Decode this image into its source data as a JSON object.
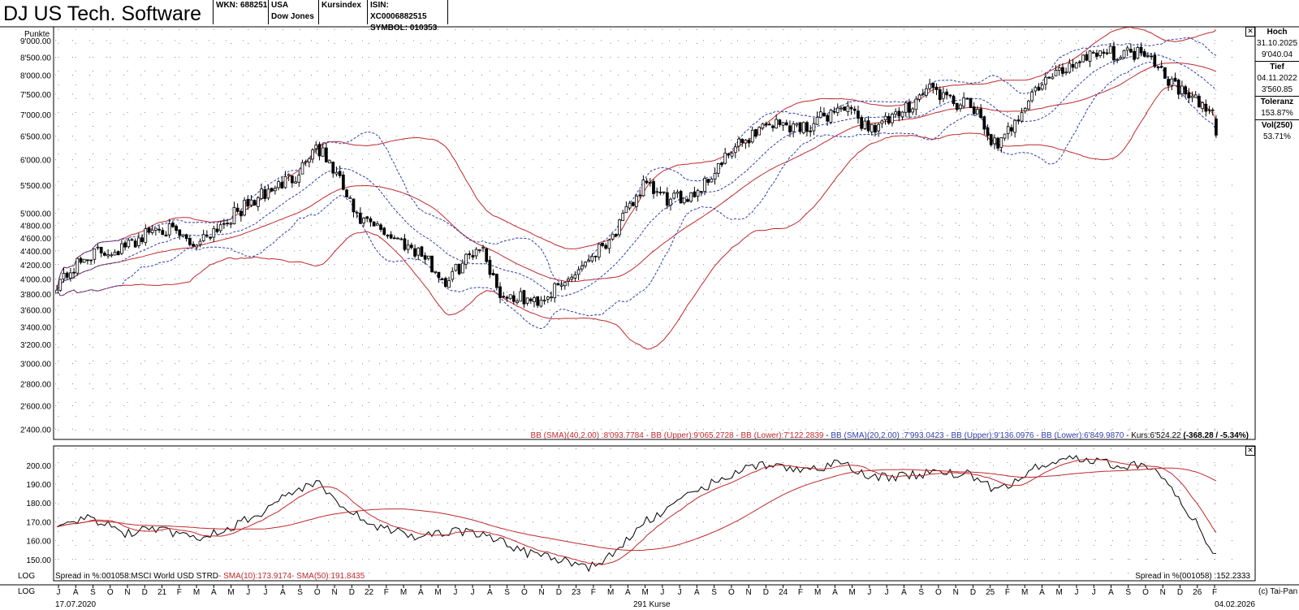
{
  "header": {
    "title": "DJ US Tech. Software",
    "cells": [
      {
        "line1": "WKN: 688251",
        "line2": ""
      },
      {
        "line1": "USA",
        "line2": "Dow Jones"
      },
      {
        "line1": "Kursindex",
        "line2": ""
      },
      {
        "line1": "ISIN: XC0006882515",
        "line2": "SYMBOL: 010353"
      }
    ]
  },
  "side_panel": {
    "hoch_label": "Hoch",
    "hoch_date": "31.10.2025",
    "hoch_value": "9'040.04",
    "tief_label": "Tief",
    "tief_date": "04.11.2022",
    "tief_value": "3'560.85",
    "toleranz_label": "Toleranz",
    "toleranz_value": "153.87%",
    "vol_label": "Vol(250)",
    "vol_value": "53.71%"
  },
  "footer": {
    "log_label_1": "LOG",
    "log_label_2": "LOG",
    "start_date": "17.07.2020",
    "count_label": "291 Kurse",
    "end_date": "04.02.2026",
    "credit": "(c) Tai-Pan"
  },
  "chart_data": [
    {
      "type": "candlestick",
      "ylabel": "Punkte",
      "scale": "log",
      "ylim": [
        2350,
        9350
      ],
      "y_ticks": [
        {
          "v": 2400,
          "label": "2'400.00"
        },
        {
          "v": 2600,
          "label": "2'600.00"
        },
        {
          "v": 2800,
          "label": "2'800.00"
        },
        {
          "v": 3000,
          "label": "3'000.00"
        },
        {
          "v": 3200,
          "label": "3'200.00"
        },
        {
          "v": 3400,
          "label": "3'400.00"
        },
        {
          "v": 3600,
          "label": "3'600.00"
        },
        {
          "v": 3800,
          "label": "3'800.00"
        },
        {
          "v": 4000,
          "label": "4'000.00"
        },
        {
          "v": 4200,
          "label": "4'200.00"
        },
        {
          "v": 4400,
          "label": "4'400.00"
        },
        {
          "v": 4600,
          "label": "4'600.00"
        },
        {
          "v": 4800,
          "label": "4'800.00"
        },
        {
          "v": 5000,
          "label": "5'000.00"
        },
        {
          "v": 5500,
          "label": "5'500.00"
        },
        {
          "v": 6000,
          "label": "6'000.00"
        },
        {
          "v": 6500,
          "label": "6'500.00"
        },
        {
          "v": 7000,
          "label": "7'000.00"
        },
        {
          "v": 7500,
          "label": "7'500.00"
        },
        {
          "v": 8000,
          "label": "8'000.00"
        },
        {
          "v": 8500,
          "label": "8'500.00"
        },
        {
          "v": 9000,
          "label": "9'000.00"
        }
      ],
      "grid": true,
      "close_anchors": [
        [
          0,
          3950
        ],
        [
          10,
          4350
        ],
        [
          20,
          4450
        ],
        [
          30,
          4800
        ],
        [
          40,
          4500
        ],
        [
          50,
          4900
        ],
        [
          60,
          5300
        ],
        [
          70,
          5700
        ],
        [
          76,
          6300
        ],
        [
          82,
          5700
        ],
        [
          88,
          4900
        ],
        [
          96,
          4700
        ],
        [
          106,
          4400
        ],
        [
          114,
          3950
        ],
        [
          124,
          4500
        ],
        [
          130,
          3800
        ],
        [
          140,
          3700
        ],
        [
          148,
          3900
        ],
        [
          156,
          4300
        ],
        [
          164,
          4700
        ],
        [
          172,
          5500
        ],
        [
          180,
          5200
        ],
        [
          188,
          5400
        ],
        [
          200,
          6300
        ],
        [
          208,
          6800
        ],
        [
          220,
          6700
        ],
        [
          230,
          7200
        ],
        [
          238,
          6700
        ],
        [
          246,
          6900
        ],
        [
          256,
          7700
        ],
        [
          262,
          7300
        ],
        [
          268,
          7200
        ],
        [
          276,
          6200
        ],
        [
          282,
          7000
        ],
        [
          288,
          7700
        ],
        [
          296,
          8200
        ],
        [
          304,
          8700
        ],
        [
          312,
          8600
        ],
        [
          320,
          8700
        ],
        [
          326,
          7900
        ],
        [
          332,
          7400
        ],
        [
          340,
          7000
        ]
      ],
      "last_open": 6892.5,
      "last_close": 6524.22,
      "indicators": {
        "bb_long": {
          "label": "BB (SMA)(40,2.00)",
          "sma": "8'093.7784",
          "upper": "9'065.2728",
          "lower": "7'122.2839",
          "color": "#c0282d"
        },
        "bb_short": {
          "label": "BB (SMA)(20,2.00)",
          "sma": "7'993.0423",
          "upper": "9'136.0976",
          "lower": "6'849.9870",
          "color": "#2e3dad"
        }
      },
      "legend_text": {
        "long": "BB (SMA)(40,2.00) :8'093.7784 - BB (Upper):9'065.2728 - BB (Lower):7'122.2839",
        "short": "BB (SMA)(20,2.00) :7'993.0423 - BB (Upper):9'136.0976 - BB (Lower):6'849.9870",
        "kurs": "Kurs:6'524.22",
        "change": "(-368.28 / -5.34%)"
      }
    },
    {
      "type": "line",
      "ylim": [
        140,
        209
      ],
      "y_ticks": [
        {
          "v": 150,
          "label": "150.00"
        },
        {
          "v": 160,
          "label": "160.00"
        },
        {
          "v": 170,
          "label": "170.00"
        },
        {
          "v": 180,
          "label": "180.00"
        },
        {
          "v": 190,
          "label": "190.00"
        },
        {
          "v": 200,
          "label": "200.00"
        }
      ],
      "spread_anchors": [
        [
          0,
          167
        ],
        [
          10,
          172
        ],
        [
          20,
          164
        ],
        [
          30,
          166
        ],
        [
          40,
          161
        ],
        [
          50,
          166
        ],
        [
          60,
          175
        ],
        [
          70,
          187
        ],
        [
          76,
          191
        ],
        [
          82,
          182
        ],
        [
          88,
          173
        ],
        [
          96,
          166
        ],
        [
          106,
          162
        ],
        [
          114,
          165
        ],
        [
          124,
          164
        ],
        [
          130,
          160
        ],
        [
          140,
          152
        ],
        [
          148,
          150
        ],
        [
          156,
          146
        ],
        [
          164,
          153
        ],
        [
          172,
          170
        ],
        [
          180,
          177
        ],
        [
          188,
          187
        ],
        [
          200,
          197
        ],
        [
          208,
          200
        ],
        [
          220,
          198
        ],
        [
          230,
          201
        ],
        [
          238,
          194
        ],
        [
          246,
          194
        ],
        [
          256,
          196
        ],
        [
          262,
          196
        ],
        [
          268,
          195
        ],
        [
          276,
          186
        ],
        [
          282,
          192
        ],
        [
          288,
          200
        ],
        [
          296,
          204
        ],
        [
          304,
          202
        ],
        [
          312,
          200
        ],
        [
          320,
          200
        ],
        [
          326,
          190
        ],
        [
          332,
          175
        ],
        [
          340,
          152
        ]
      ],
      "series": [
        {
          "name": "Spread in %:001058:MSCI World USD STRD",
          "color": "#000000"
        },
        {
          "name": "SMA(10)",
          "color": "#c0282d"
        },
        {
          "name": "SMA(50)",
          "color": "#c0282d"
        }
      ],
      "legend_text": {
        "spread": "Spread in %:001058:MSCI World USD STRD",
        "sma10": "- SMA(10):173.9174",
        "sma50": "- SMA(50):191.8435",
        "right": "Spread in %(001058) :152.2333"
      }
    }
  ],
  "x_axis": {
    "month_labels": [
      "J",
      "A",
      "S",
      "O",
      "N",
      "D",
      "21",
      "F",
      "M",
      "A",
      "M",
      "J",
      "J",
      "A",
      "S",
      "O",
      "N",
      "D",
      "22",
      "F",
      "M",
      "A",
      "M",
      "J",
      "J",
      "A",
      "S",
      "O",
      "N",
      "D",
      "23",
      "F",
      "M",
      "A",
      "M",
      "J",
      "J",
      "A",
      "S",
      "O",
      "N",
      "D",
      "24",
      "F",
      "M",
      "A",
      "M",
      "J",
      "J",
      "A",
      "S",
      "O",
      "N",
      "D",
      "25",
      "F",
      "M",
      "A",
      "M",
      "J",
      "J",
      "A",
      "S",
      "O",
      "N",
      "D",
      "26",
      "F"
    ]
  }
}
